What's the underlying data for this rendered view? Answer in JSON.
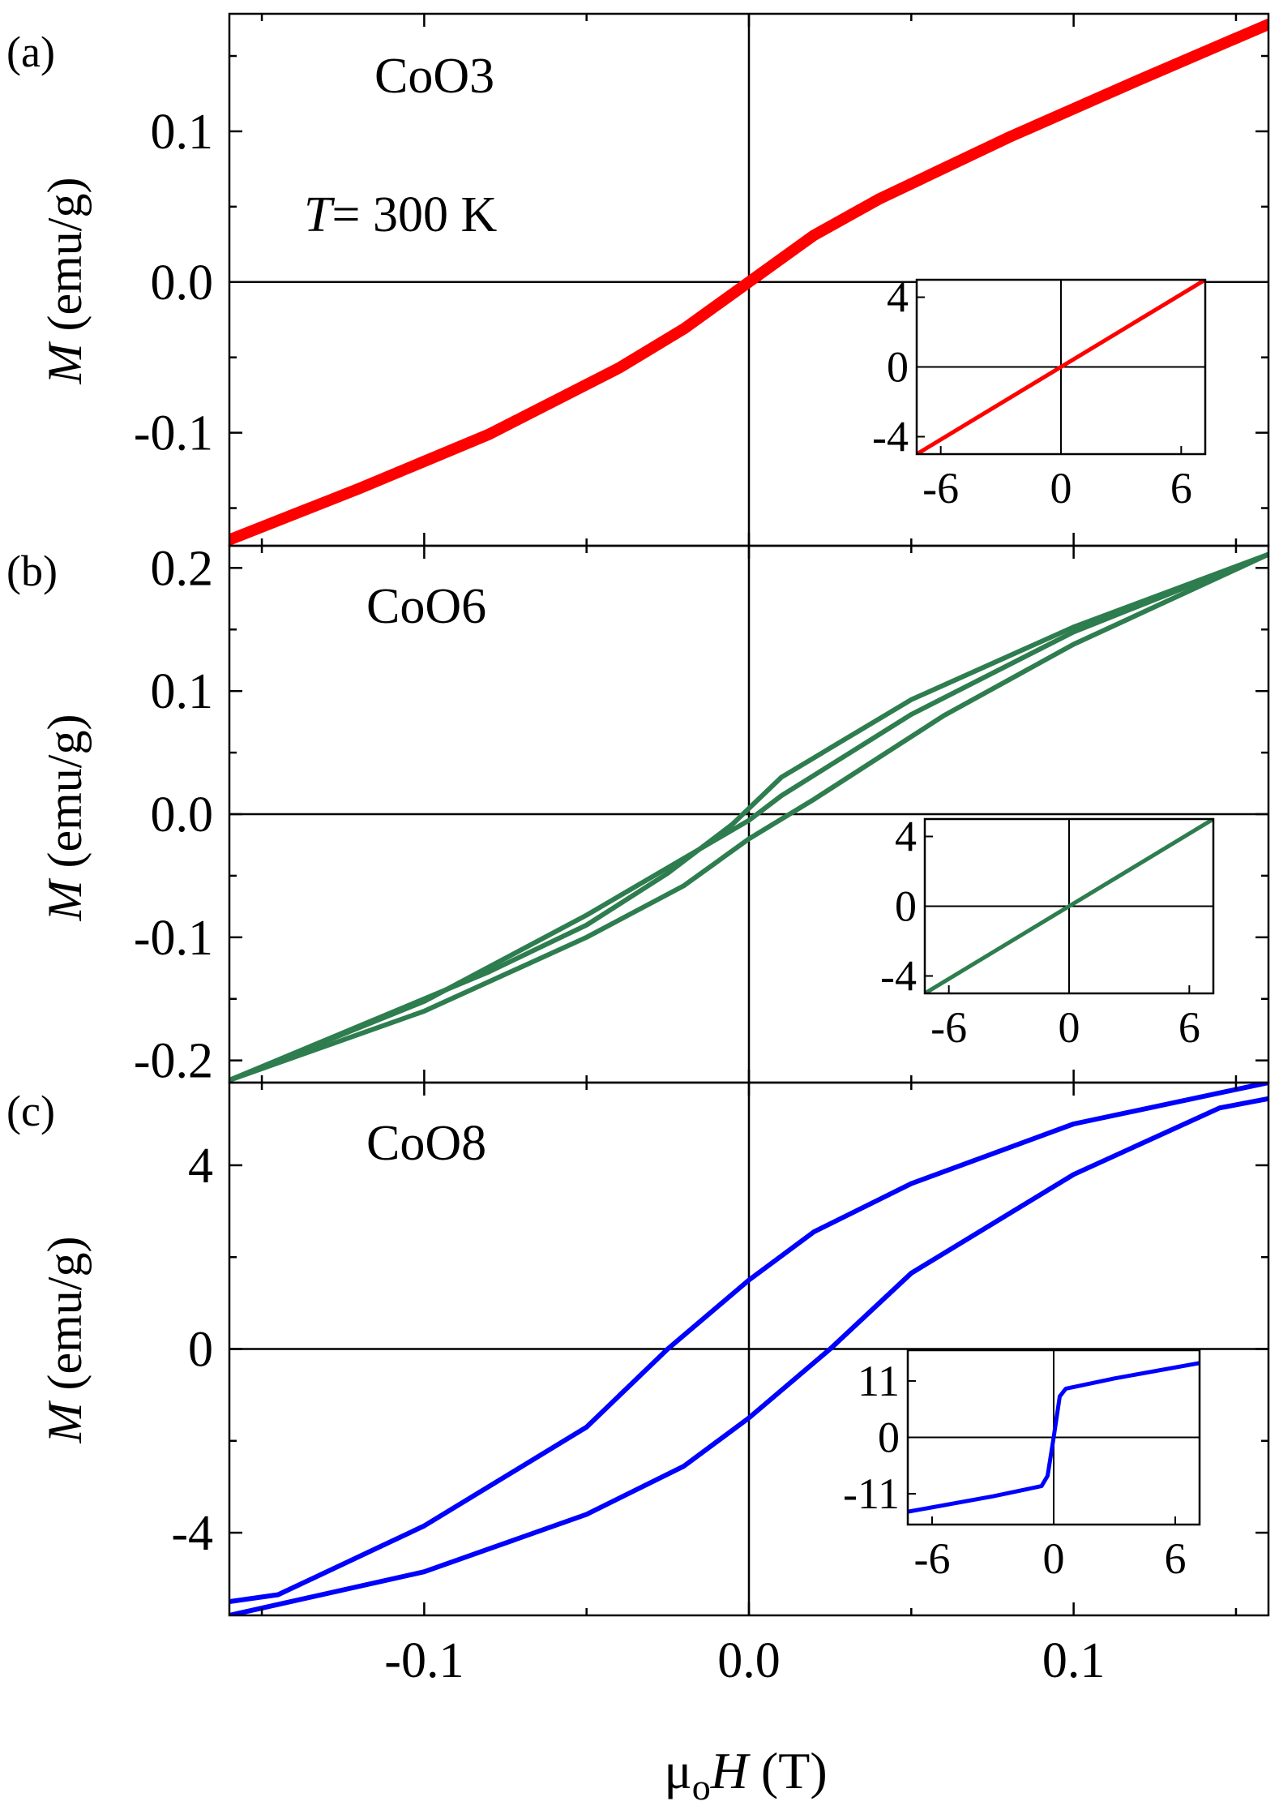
{
  "figure": {
    "xlabel": {
      "prefix": "μ",
      "sub": "o",
      "ital": "H",
      "suffix": " (T)"
    },
    "ylabel": {
      "ital": "M",
      "rest": " (emu/g)"
    },
    "temperature_ital": "T",
    "temperature_text": "= 300 K"
  },
  "chart_data": [
    {
      "type": "line",
      "panel": "(a)",
      "sample": "CoO3",
      "xlim": [
        -0.16,
        0.16
      ],
      "ylim": [
        -0.175,
        0.178
      ],
      "xticks": [
        -0.1,
        0.0,
        0.1
      ],
      "xtick_labels": [],
      "xminor": [
        -0.15,
        -0.05,
        0.05,
        0.15
      ],
      "yticks": [
        -0.1,
        0.0,
        0.1
      ],
      "ytick_labels": [
        "-0.1",
        "0.0",
        "0.1"
      ],
      "yminor": [
        -0.15,
        -0.05,
        0.05,
        0.15
      ],
      "color": "#ff0000",
      "line_width": 14,
      "series": [
        {
          "name": "loop",
          "x": [
            -0.16,
            -0.12,
            -0.08,
            -0.04,
            -0.02,
            0.0,
            0.02,
            0.04,
            0.08,
            0.12,
            0.16
          ],
          "y": [
            -0.171,
            -0.137,
            -0.101,
            -0.057,
            -0.031,
            0.0,
            0.031,
            0.055,
            0.096,
            0.134,
            0.171
          ]
        }
      ],
      "inset": {
        "xlim": [
          -7.2,
          7.2
        ],
        "ylim": [
          -5.0,
          5.0
        ],
        "xticks": [
          -6,
          0,
          6
        ],
        "xtick_labels": [
          "-6",
          "0",
          "6"
        ],
        "yticks": [
          -4,
          0,
          4
        ],
        "ytick_labels": [
          "-4",
          "0",
          "4"
        ],
        "series": [
          {
            "name": "full",
            "x": [
              -7.2,
              7.2
            ],
            "y": [
              -5.0,
              5.0
            ]
          }
        ]
      }
    },
    {
      "type": "line",
      "panel": "(b)",
      "sample": "CoO6",
      "xlim": [
        -0.16,
        0.16
      ],
      "ylim": [
        -0.218,
        0.218
      ],
      "xticks": [
        -0.1,
        0.0,
        0.1
      ],
      "xtick_labels": [],
      "xminor": [
        -0.15,
        -0.05,
        0.05,
        0.15
      ],
      "yticks": [
        -0.2,
        -0.1,
        0.0,
        0.1,
        0.2
      ],
      "ytick_labels": [
        "-0.2",
        "-0.1",
        "0.0",
        "0.1",
        "0.2"
      ],
      "yminor": [
        -0.15,
        -0.05,
        0.05,
        0.15
      ],
      "color": "#2e7d4f",
      "line_width": 6,
      "series": [
        {
          "name": "branch-1",
          "x": [
            -0.16,
            -0.12,
            -0.08,
            -0.05,
            -0.025,
            -0.005,
            0.01,
            0.05,
            0.1,
            0.16
          ],
          "y": [
            -0.216,
            -0.172,
            -0.128,
            -0.09,
            -0.048,
            -0.008,
            0.03,
            0.093,
            0.152,
            0.211
          ]
        },
        {
          "name": "branch-2",
          "x": [
            -0.16,
            -0.1,
            -0.05,
            -0.02,
            0.0,
            0.02,
            0.06,
            0.1,
            0.16
          ],
          "y": [
            -0.216,
            -0.16,
            -0.1,
            -0.058,
            -0.02,
            0.012,
            0.08,
            0.138,
            0.211
          ]
        },
        {
          "name": "branch-3",
          "x": [
            -0.16,
            -0.1,
            -0.05,
            0.0,
            0.01,
            0.05,
            0.1,
            0.16
          ],
          "y": [
            -0.216,
            -0.152,
            -0.082,
            -0.005,
            0.015,
            0.081,
            0.148,
            0.211
          ]
        }
      ],
      "inset": {
        "xlim": [
          -7.2,
          7.2
        ],
        "ylim": [
          -5.0,
          5.0
        ],
        "xticks": [
          -6,
          0,
          6
        ],
        "xtick_labels": [
          "-6",
          "0",
          "6"
        ],
        "yticks": [
          -4,
          0,
          4
        ],
        "ytick_labels": [
          "-4",
          "0",
          "4"
        ],
        "series": [
          {
            "name": "full",
            "x": [
              -7.2,
              7.2
            ],
            "y": [
              -5.0,
              5.0
            ]
          }
        ]
      }
    },
    {
      "type": "line",
      "panel": "(c)",
      "sample": "CoO8",
      "xlim": [
        -0.16,
        0.16
      ],
      "ylim": [
        -5.8,
        5.8
      ],
      "xticks": [
        -0.1,
        0.0,
        0.1
      ],
      "xtick_labels": [
        "-0.1",
        "0.0",
        "0.1"
      ],
      "xminor": [
        -0.15,
        -0.05,
        0.05,
        0.15
      ],
      "yticks": [
        -4,
        0,
        4
      ],
      "ytick_labels": [
        "-4",
        "0",
        "4"
      ],
      "yminor": [
        -2,
        2
      ],
      "color": "#0000ff",
      "line_width": 6,
      "series": [
        {
          "name": "descending",
          "x": [
            0.16,
            0.1,
            0.05,
            0.02,
            0.0,
            -0.025,
            -0.05,
            -0.1,
            -0.145,
            -0.16
          ],
          "y": [
            5.8,
            4.9,
            3.6,
            2.55,
            1.5,
            0.0,
            -1.7,
            -3.85,
            -5.35,
            -5.5
          ]
        },
        {
          "name": "ascending",
          "x": [
            -0.16,
            -0.1,
            -0.05,
            -0.02,
            0.0,
            0.025,
            0.05,
            0.1,
            0.145,
            0.16
          ],
          "y": [
            -5.8,
            -4.85,
            -3.6,
            -2.55,
            -1.5,
            0.0,
            1.65,
            3.8,
            5.25,
            5.45
          ]
        }
      ],
      "inset": {
        "xlim": [
          -7.2,
          7.2
        ],
        "ylim": [
          -17.0,
          17.0
        ],
        "xticks": [
          -6,
          0,
          6
        ],
        "xtick_labels": [
          "-6",
          "0",
          "6"
        ],
        "yticks": [
          -11,
          0,
          11
        ],
        "ytick_labels": [
          "-11",
          "0",
          "11"
        ],
        "series": [
          {
            "name": "full",
            "x": [
              -7.2,
              -3.0,
              -0.6,
              -0.3,
              0.0,
              0.3,
              0.6,
              3.0,
              7.2
            ],
            "y": [
              -14.5,
              -11.5,
              -9.5,
              -7.5,
              0.0,
              8.0,
              9.5,
              11.5,
              14.5
            ]
          }
        ]
      }
    }
  ]
}
